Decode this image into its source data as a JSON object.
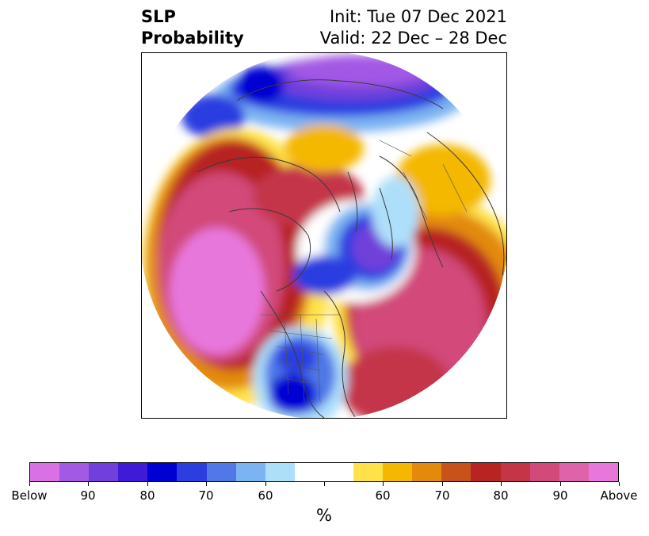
{
  "title": {
    "left_line1": "SLP",
    "left_line2": "Probability",
    "right_line1": "Init: Tue 07 Dec 2021",
    "right_line2": "Valid: 22 Dec – 28 Dec"
  },
  "map": {
    "projection": "north-polar-stereographic",
    "features": [
      "coastlines",
      "country-borders",
      "us-state-borders"
    ],
    "regions": [
      {
        "name": "western-north-america-pacific",
        "category": "above",
        "level": "above-90"
      },
      {
        "name": "eastern-north-america-atlantic",
        "category": "above",
        "level": "above-90"
      },
      {
        "name": "arctic-siberia",
        "category": "below",
        "level": "below-90"
      },
      {
        "name": "greenland-north-atlantic",
        "category": "below",
        "level": "below-80"
      },
      {
        "name": "central-north-america",
        "category": "below",
        "level": "below-70"
      },
      {
        "name": "europe-scandinavia",
        "category": "below",
        "level": "below-60"
      }
    ]
  },
  "colorbar": {
    "unit": "%",
    "colors": [
      "#d871e3",
      "#a259e4",
      "#713fdb",
      "#3f1ad7",
      "#0000d3",
      "#2c3ee0",
      "#5078e6",
      "#7cb3f2",
      "#aedffa",
      "#ffffff",
      "#ffffff",
      "#ffe24a",
      "#f4b800",
      "#e38a0d",
      "#c7531a",
      "#b72422",
      "#c43548",
      "#d24a7a",
      "#df63ab",
      "#e877dc"
    ],
    "tick_labels": [
      "Below",
      "90",
      "80",
      "70",
      "60",
      "",
      "60",
      "70",
      "80",
      "90",
      "Above"
    ]
  }
}
